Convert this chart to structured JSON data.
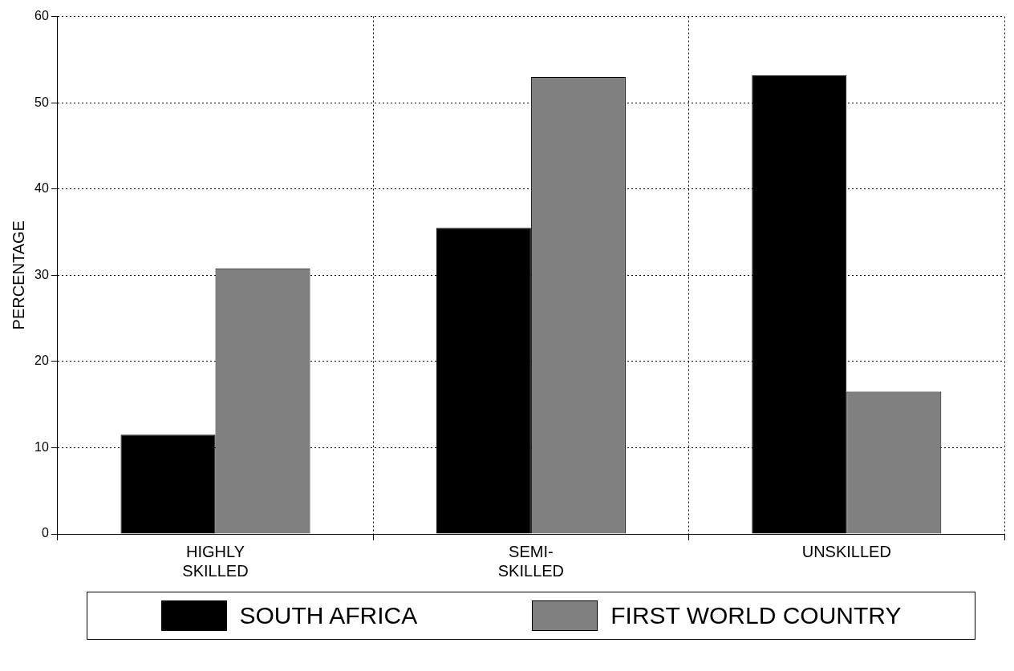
{
  "chart_data": {
    "type": "bar",
    "ylabel": "PERCENTAGE",
    "categories": [
      "HIGHLY SKILLED",
      "SEMI-SKILLED",
      "UNSKILLED"
    ],
    "series": [
      {
        "name": "SOUTH AFRICA",
        "color": "#000000",
        "values": [
          11.5,
          35.5,
          53.2
        ]
      },
      {
        "name": "FIRST WORLD COUNTRY",
        "color": "#808080",
        "values": [
          30.8,
          53,
          16.5
        ]
      }
    ],
    "ylim": [
      0,
      60
    ],
    "yticks": [
      0,
      10,
      20,
      30,
      40,
      50,
      60
    ],
    "grid": true,
    "legend": "bottom"
  }
}
